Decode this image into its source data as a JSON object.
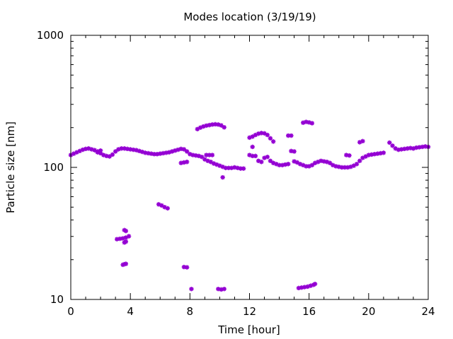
{
  "chart_data": {
    "type": "scatter",
    "title": "Modes location (3/19/19)",
    "xlabel": "Time [hour]",
    "ylabel": "Particle size [nm]",
    "xlim": [
      0,
      24
    ],
    "ylim": [
      10,
      1000
    ],
    "yscale": "log",
    "grid": false,
    "legend": "none",
    "marker_color": "#9400d3",
    "xticks": [
      0,
      4,
      8,
      12,
      16,
      20,
      24
    ],
    "xtick_labels": [
      "0",
      "4",
      "8",
      "12",
      "16",
      "20",
      "24"
    ],
    "yticks": [
      10,
      100,
      1000
    ],
    "ytick_labels": [
      "10",
      "100",
      "1000"
    ],
    "series": [
      {
        "values": [
          [
            0.0,
            124
          ],
          [
            0.2,
            127
          ],
          [
            0.4,
            130
          ],
          [
            0.6,
            133
          ],
          [
            0.8,
            136
          ],
          [
            1.0,
            138
          ],
          [
            1.2,
            139
          ],
          [
            1.4,
            137
          ],
          [
            1.6,
            135
          ],
          [
            1.8,
            132
          ],
          [
            2.0,
            128
          ],
          [
            2.2,
            124
          ],
          [
            2.4,
            122
          ],
          [
            2.6,
            121
          ],
          [
            2.8,
            125
          ],
          [
            3.0,
            132
          ],
          [
            3.2,
            137
          ],
          [
            3.4,
            139
          ],
          [
            3.6,
            139
          ],
          [
            3.8,
            138
          ],
          [
            4.0,
            137
          ],
          [
            4.2,
            136
          ],
          [
            4.4,
            135
          ],
          [
            4.6,
            133
          ],
          [
            4.8,
            131
          ],
          [
            5.0,
            129
          ],
          [
            5.2,
            128
          ],
          [
            5.4,
            127
          ],
          [
            5.6,
            126
          ],
          [
            5.8,
            126
          ],
          [
            6.0,
            127
          ],
          [
            6.2,
            128
          ],
          [
            6.4,
            129
          ],
          [
            6.6,
            130
          ],
          [
            6.8,
            132
          ],
          [
            7.0,
            134
          ],
          [
            7.2,
            136
          ],
          [
            7.4,
            138
          ],
          [
            7.6,
            137
          ],
          [
            7.8,
            132
          ],
          [
            8.0,
            126
          ],
          [
            8.2,
            124
          ],
          [
            8.4,
            123
          ],
          [
            8.6,
            122
          ],
          [
            8.8,
            120
          ],
          [
            9.0,
            115
          ],
          [
            9.2,
            112
          ],
          [
            9.4,
            110
          ],
          [
            9.6,
            107
          ],
          [
            9.8,
            105
          ],
          [
            10.0,
            103
          ],
          [
            10.2,
            101
          ],
          [
            10.4,
            99
          ],
          [
            10.6,
            99
          ],
          [
            10.8,
            99
          ],
          [
            11.0,
            100
          ],
          [
            11.2,
            99
          ],
          [
            11.4,
            98
          ],
          [
            11.6,
            98
          ],
          [
            12.0,
            124
          ],
          [
            12.2,
            122
          ],
          [
            12.4,
            122
          ],
          [
            12.6,
            112
          ],
          [
            12.8,
            110
          ],
          [
            13.0,
            118
          ],
          [
            13.2,
            120
          ],
          [
            13.4,
            112
          ],
          [
            13.6,
            108
          ],
          [
            13.8,
            106
          ],
          [
            14.0,
            104
          ],
          [
            14.2,
            104
          ],
          [
            14.4,
            105
          ],
          [
            14.6,
            106
          ],
          [
            15.0,
            111
          ],
          [
            15.2,
            109
          ],
          [
            15.4,
            106
          ],
          [
            15.6,
            104
          ],
          [
            15.8,
            102
          ],
          [
            16.0,
            102
          ],
          [
            16.2,
            104
          ],
          [
            16.4,
            108
          ],
          [
            16.6,
            110
          ],
          [
            16.8,
            112
          ],
          [
            17.0,
            111
          ],
          [
            17.2,
            110
          ],
          [
            17.4,
            108
          ],
          [
            17.6,
            104
          ],
          [
            17.8,
            102
          ],
          [
            18.0,
            101
          ],
          [
            18.2,
            100
          ],
          [
            18.4,
            100
          ],
          [
            18.6,
            100
          ],
          [
            18.8,
            101
          ],
          [
            19.0,
            103
          ],
          [
            19.2,
            106
          ],
          [
            19.4,
            112
          ],
          [
            19.6,
            118
          ],
          [
            19.8,
            121
          ],
          [
            20.0,
            124
          ],
          [
            20.2,
            125
          ],
          [
            20.4,
            126
          ],
          [
            20.6,
            127
          ],
          [
            20.8,
            128
          ],
          [
            21.0,
            129
          ],
          [
            21.4,
            154
          ],
          [
            21.6,
            146
          ],
          [
            21.8,
            139
          ],
          [
            22.0,
            136
          ],
          [
            22.2,
            137
          ],
          [
            22.4,
            138
          ],
          [
            22.6,
            139
          ],
          [
            22.8,
            140
          ],
          [
            23.0,
            139
          ],
          [
            23.2,
            141
          ],
          [
            23.4,
            142
          ],
          [
            23.6,
            143
          ],
          [
            23.8,
            144
          ],
          [
            24.0,
            143
          ],
          [
            1.8,
            130
          ],
          [
            2.0,
            134
          ],
          [
            7.4,
            108
          ],
          [
            7.6,
            109
          ],
          [
            7.8,
            110
          ],
          [
            8.5,
            195
          ],
          [
            8.7,
            200
          ],
          [
            8.9,
            204
          ],
          [
            9.1,
            207
          ],
          [
            9.3,
            209
          ],
          [
            9.5,
            211
          ],
          [
            9.7,
            212
          ],
          [
            9.9,
            211
          ],
          [
            10.1,
            208
          ],
          [
            10.3,
            201
          ],
          [
            9.1,
            124
          ],
          [
            9.3,
            124
          ],
          [
            9.5,
            124
          ],
          [
            10.2,
            84
          ],
          [
            12.0,
            168
          ],
          [
            12.2,
            171
          ],
          [
            12.4,
            176
          ],
          [
            12.6,
            180
          ],
          [
            12.8,
            182
          ],
          [
            13.0,
            181
          ],
          [
            13.2,
            176
          ],
          [
            13.4,
            166
          ],
          [
            13.6,
            157
          ],
          [
            12.2,
            143
          ],
          [
            14.6,
            174
          ],
          [
            14.8,
            174
          ],
          [
            14.8,
            133
          ],
          [
            15.0,
            132
          ],
          [
            15.6,
            218
          ],
          [
            15.8,
            221
          ],
          [
            16.0,
            219
          ],
          [
            16.2,
            216
          ],
          [
            18.5,
            124
          ],
          [
            18.7,
            123
          ],
          [
            19.4,
            155
          ],
          [
            19.6,
            158
          ],
          [
            3.1,
            28.6
          ],
          [
            3.3,
            28.8
          ],
          [
            3.5,
            29.0
          ],
          [
            3.7,
            29.4
          ],
          [
            3.9,
            30.1
          ],
          [
            3.6,
            33.5
          ],
          [
            3.7,
            33.0
          ],
          [
            3.6,
            27.0
          ],
          [
            3.7,
            27.4
          ],
          [
            3.5,
            18.3
          ],
          [
            3.6,
            18.5
          ],
          [
            3.7,
            18.6
          ],
          [
            5.9,
            52.5
          ],
          [
            6.1,
            51.5
          ],
          [
            6.3,
            50.0
          ],
          [
            6.5,
            49.0
          ],
          [
            7.6,
            17.6
          ],
          [
            7.8,
            17.5
          ],
          [
            8.1,
            12.0
          ],
          [
            9.9,
            12.0
          ],
          [
            10.1,
            11.9
          ],
          [
            10.3,
            12.0
          ],
          [
            15.3,
            12.2
          ],
          [
            15.5,
            12.3
          ],
          [
            15.7,
            12.4
          ],
          [
            15.9,
            12.5
          ],
          [
            16.1,
            12.7
          ],
          [
            16.3,
            12.9
          ],
          [
            16.4,
            13.1
          ]
        ]
      }
    ]
  }
}
